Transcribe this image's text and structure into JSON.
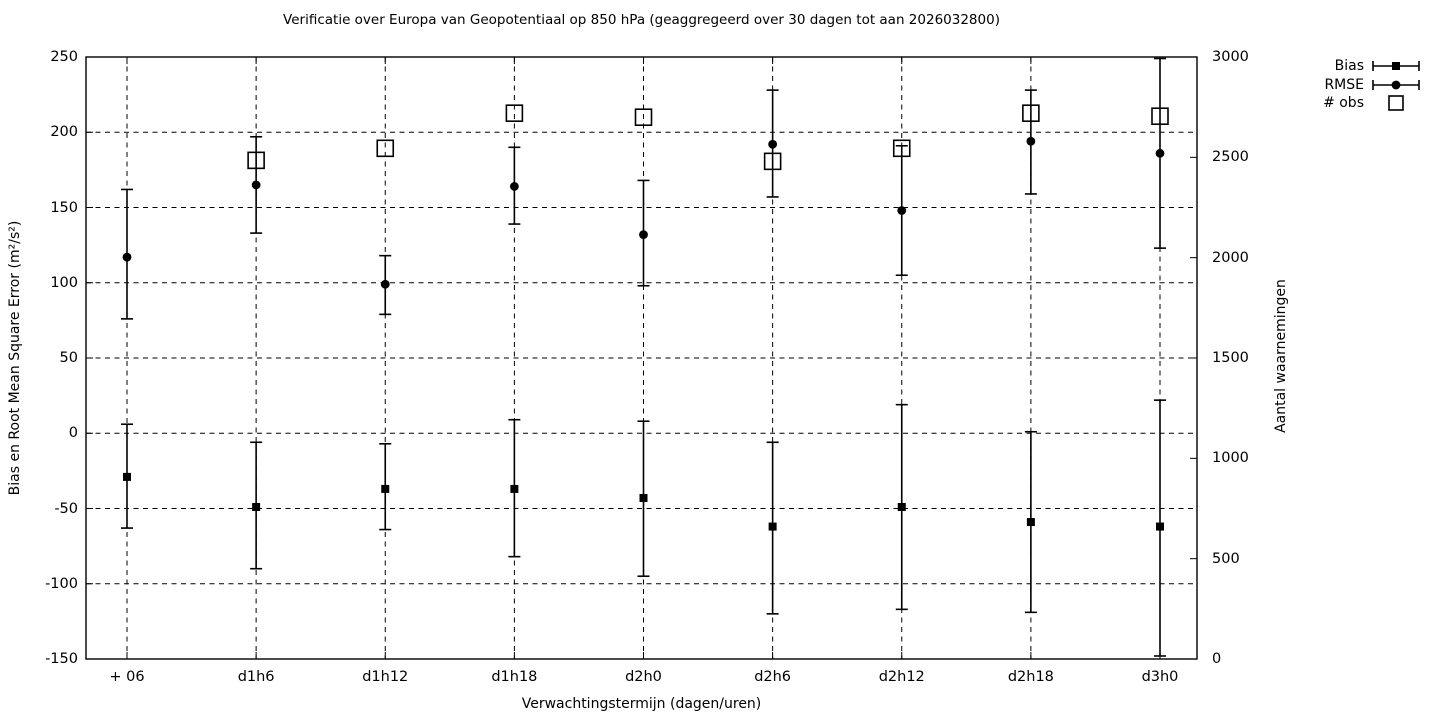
{
  "title": "Verificatie over Europa van Geopotentiaal op 850 hPa (geaggregeerd over 30 dagen tot aan 2026032800)",
  "colors": {
    "foreground": "#000000",
    "background": "#ffffff"
  },
  "chart_data": {
    "type": "scatter",
    "title": "Verificatie over Europa van Geopotentiaal op 850 hPa (geaggregeerd over 30 dagen tot aan 2026032800)",
    "xlabel": "Verwachtingstermijn (dagen/uren)",
    "ylabel_left": "Bias en Root Mean Square Error (m²/s²)",
    "ylabel_right": "Aantal waarnemingen",
    "categories": [
      "+ 06",
      "d1h6",
      "d1h12",
      "d1h18",
      "d2h0",
      "d2h6",
      "d2h12",
      "d2h18",
      "d3h0"
    ],
    "ylim_left": [
      -150,
      250
    ],
    "yticks_left": [
      250,
      200,
      150,
      100,
      50,
      0,
      -50,
      -100,
      -150
    ],
    "ylim_right": [
      0,
      3000
    ],
    "yticks_right": [
      3000,
      2500,
      2000,
      1500,
      1000,
      500,
      0
    ],
    "grid": true,
    "legend_position": "top-right-outside",
    "series": [
      {
        "name": "Bias",
        "marker": "filled-square",
        "axis": "left",
        "values": [
          -29,
          -49,
          -37,
          -37,
          -43,
          -62,
          -49,
          -59,
          -62
        ],
        "err_low": [
          -63,
          -90,
          -64,
          -82,
          -95,
          -120,
          -117,
          -119,
          -148
        ],
        "err_high": [
          6,
          -6,
          -7,
          9,
          8,
          -6,
          19,
          1,
          22
        ]
      },
      {
        "name": "RMSE",
        "marker": "filled-circle",
        "axis": "left",
        "values": [
          117,
          165,
          99,
          164,
          132,
          192,
          148,
          194,
          186
        ],
        "err_low": [
          76,
          133,
          79,
          139,
          98,
          157,
          105,
          159,
          123
        ],
        "err_high": [
          162,
          197,
          118,
          190,
          168,
          228,
          191,
          228,
          249
        ]
      },
      {
        "name": "# obs",
        "marker": "open-square",
        "axis": "right",
        "values": [
          null,
          2485,
          2545,
          2720,
          2700,
          2480,
          2545,
          2720,
          2705
        ]
      }
    ]
  }
}
